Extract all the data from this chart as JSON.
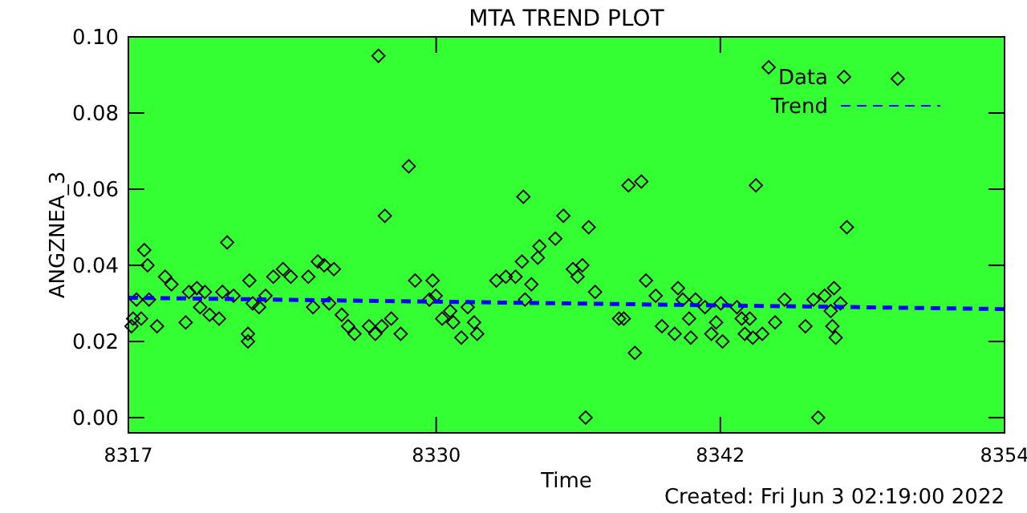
{
  "chart_data": {
    "type": "scatter",
    "title": "MTA TREND PLOT",
    "xlabel": "Time",
    "ylabel": "ANGZNEA_3",
    "annotations": [
      "Created: Fri Jun  3 02:19:00 2022"
    ],
    "xlim": [
      8317,
      8354
    ],
    "xticks": [
      8317,
      8330,
      8342,
      8354
    ],
    "ylim": [
      -0.004,
      0.1
    ],
    "yticks": [
      {
        "value": 0,
        "label": "0.00"
      },
      {
        "value": 0.02,
        "label": "0.02"
      },
      {
        "value": 0.04,
        "label": "0.04"
      },
      {
        "value": 0.06,
        "label": "0.06"
      },
      {
        "value": 0.08,
        "label": "0.08"
      },
      {
        "value": 0.1,
        "label": "0.10"
      }
    ],
    "grid": false,
    "legend": "top right",
    "series": [
      {
        "name": "Data",
        "marker": "diamond",
        "color": "#000000",
        "x": [
          8317.67,
          8317.81,
          8317.34,
          8317.13,
          8317.2,
          8317.54,
          8318.21,
          8317.87,
          8318.55,
          8318.82,
          8319.42,
          8319.56,
          8319.89,
          8320.03,
          8320.23,
          8320.43,
          8320.83,
          8320.97,
          8321.17,
          8321.44,
          8322.11,
          8322.05,
          8322.05,
          8322.25,
          8322.52,
          8322.79,
          8323.12,
          8323.53,
          8323.86,
          8324.6,
          8324.8,
          8325.0,
          8325.27,
          8325.68,
          8325.48,
          8326.01,
          8326.28,
          8326.55,
          8327.16,
          8327.43,
          8327.7,
          8328.1,
          8328.5,
          8327.56,
          8328.84,
          8327.83,
          8329.11,
          8329.85,
          8329.98,
          8329.71,
          8330.59,
          8330.25,
          8330.72,
          8331.33,
          8331.6,
          8331.06,
          8331.73,
          8332.54,
          8332.94,
          8333.35,
          8333.68,
          8333.62,
          8333.75,
          8334.02,
          8334.29,
          8334.36,
          8335.03,
          8335.37,
          8335.77,
          8335.97,
          8336.17,
          8336.44,
          8336.71,
          8336.31,
          8337.72,
          8337.92,
          8338.12,
          8338.66,
          8338.39,
          8338.86,
          8339.27,
          8339.53,
          8340.21,
          8340.07,
          8340.41,
          8340.68,
          8340.75,
          8340.95,
          8341.35,
          8341.62,
          8344.04,
          8349.49,
          8343.5,
          8347.34,
          8346.13,
          8342.02,
          8341.82,
          8342.09,
          8342.7,
          8342.9,
          8343.24,
          8343.03,
          8343.37,
          8343.77,
          8344.31,
          8344.71,
          8345.59,
          8345.93,
          8346.4,
          8346.73,
          8346.87,
          8346.8,
          8347.07,
          8346.66
        ],
        "values": [
          0.044,
          0.04,
          0.031,
          0.024,
          0.026,
          0.026,
          0.024,
          0.031,
          0.037,
          0.035,
          0.025,
          0.033,
          0.034,
          0.029,
          0.033,
          0.027,
          0.026,
          0.033,
          0.046,
          0.032,
          0.036,
          0.022,
          0.02,
          0.03,
          0.029,
          0.032,
          0.037,
          0.039,
          0.037,
          0.037,
          0.029,
          0.041,
          0.04,
          0.039,
          0.03,
          0.027,
          0.024,
          0.022,
          0.024,
          0.022,
          0.024,
          0.026,
          0.022,
          0.095,
          0.066,
          0.053,
          0.036,
          0.036,
          0.032,
          0.031,
          0.028,
          0.026,
          0.025,
          0.029,
          0.025,
          0.021,
          0.022,
          0.036,
          0.037,
          0.037,
          0.058,
          0.041,
          0.031,
          0.035,
          0.042,
          0.045,
          0.047,
          0.053,
          0.039,
          0.037,
          0.04,
          0.05,
          0.033,
          0.0,
          0.026,
          0.026,
          0.061,
          0.062,
          0.017,
          0.036,
          0.032,
          0.024,
          0.034,
          0.022,
          0.031,
          0.026,
          0.021,
          0.031,
          0.029,
          0.022,
          0.092,
          0.089,
          0.061,
          0.05,
          0.0,
          0.03,
          0.025,
          0.02,
          0.029,
          0.026,
          0.026,
          0.022,
          0.021,
          0.022,
          0.025,
          0.031,
          0.024,
          0.031,
          0.032,
          0.024,
          0.021,
          0.034,
          0.03,
          0.028
        ]
      },
      {
        "name": "Trend",
        "type": "line",
        "color": "#0000ff",
        "line_style": "dashed",
        "x": [
          8317,
          8354
        ],
        "values": [
          0.0315,
          0.0285
        ]
      }
    ]
  }
}
